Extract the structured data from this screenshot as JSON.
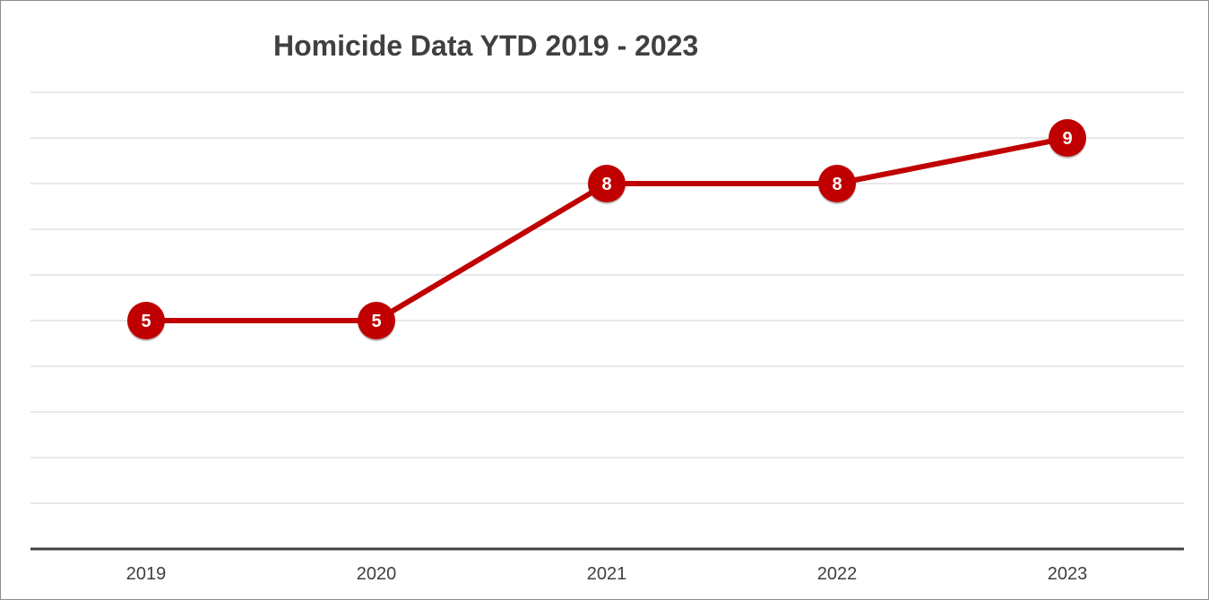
{
  "chart_data": {
    "type": "line",
    "title": "Homicide Data YTD 2019 - 2023",
    "xlabel": "",
    "ylabel": "",
    "categories": [
      "2019",
      "2020",
      "2021",
      "2022",
      "2023"
    ],
    "series": [
      {
        "values": [
          5,
          5,
          8,
          8,
          9
        ]
      }
    ],
    "ylim": [
      0,
      10
    ],
    "grid": true,
    "legend": "none",
    "data_labels": true,
    "y_tick_labels_shown": false
  },
  "colors": {
    "line": "#c00000",
    "marker": "#c00000",
    "label_text": "#ffffff",
    "grid": "#d9d9d9",
    "axis": "#404040",
    "title": "#404040",
    "tick_text": "#404040"
  }
}
